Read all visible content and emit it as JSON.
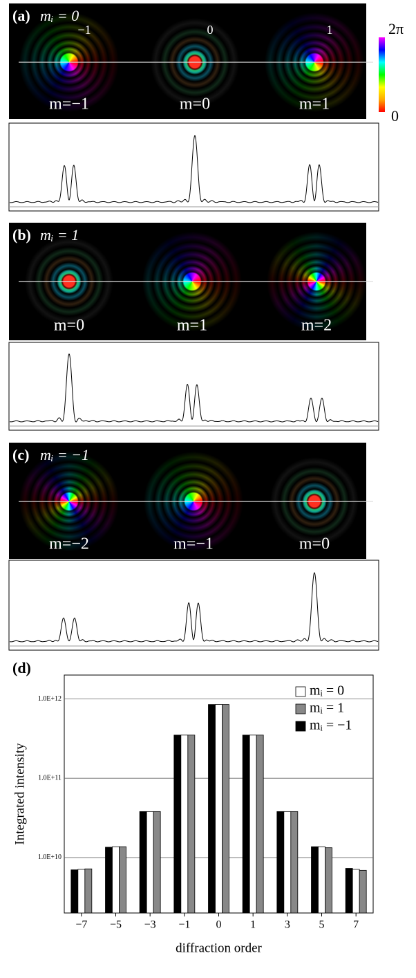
{
  "panels": [
    {
      "label": "(a)",
      "title": "mᵢ = 0",
      "orders": [
        {
          "m": -1,
          "label": "m=−1"
        },
        {
          "m": 0,
          "label": "m=0"
        },
        {
          "m": 1,
          "label": "m=1"
        }
      ],
      "tags": [
        "−1",
        "0",
        "1"
      ],
      "colorbar": {
        "top": "2π",
        "bottom": "0"
      }
    },
    {
      "label": "(b)",
      "title": "mᵢ = 1",
      "orders": [
        {
          "m": 0,
          "label": "m=0"
        },
        {
          "m": 1,
          "label": "m=1"
        },
        {
          "m": 2,
          "label": "m=2"
        }
      ]
    },
    {
      "label": "(c)",
      "title": "mᵢ = −1",
      "orders": [
        {
          "m": -2,
          "label": "m=−2"
        },
        {
          "m": -1,
          "label": "m=−1"
        },
        {
          "m": 0,
          "label": "m=0"
        }
      ]
    }
  ],
  "chart_data": {
    "type": "bar",
    "label": "(d)",
    "x_label": "diffraction order",
    "y_label": "Integrated intensity",
    "categories": [
      "−7",
      "−5",
      "−3",
      "−1",
      "0",
      "1",
      "3",
      "5",
      "7"
    ],
    "series": [
      {
        "name": "mᵢ = 0",
        "color": "#ffffff",
        "values": [
          7100000000.0,
          13700000000.0,
          38000000000.0,
          350000000000.0,
          850000000000.0,
          350000000000.0,
          38000000000.0,
          13700000000.0,
          7100000000.0
        ]
      },
      {
        "name": "mᵢ = 1",
        "color": "#888888",
        "values": [
          7200000000.0,
          13700000000.0,
          38000000000.0,
          350000000000.0,
          850000000000.0,
          350000000000.0,
          38000000000.0,
          13300000000.0,
          6900000000.0
        ]
      },
      {
        "name": "mᵢ = −1",
        "color": "#000000",
        "values": [
          7000000000.0,
          13500000000.0,
          38000000000.0,
          350000000000.0,
          850000000000.0,
          350000000000.0,
          38000000000.0,
          13700000000.0,
          7300000000.0
        ]
      }
    ],
    "log": true,
    "ylim": [
      2000000000.0,
      2000000000000.0
    ],
    "yticks": [
      {
        "value": 10000000000.0,
        "label": "1.0E+10"
      },
      {
        "value": 100000000000.0,
        "label": "1.0E+11"
      },
      {
        "value": 1000000000000.0,
        "label": "1.0E+12"
      }
    ],
    "grid": true,
    "legend": "upper right"
  }
}
